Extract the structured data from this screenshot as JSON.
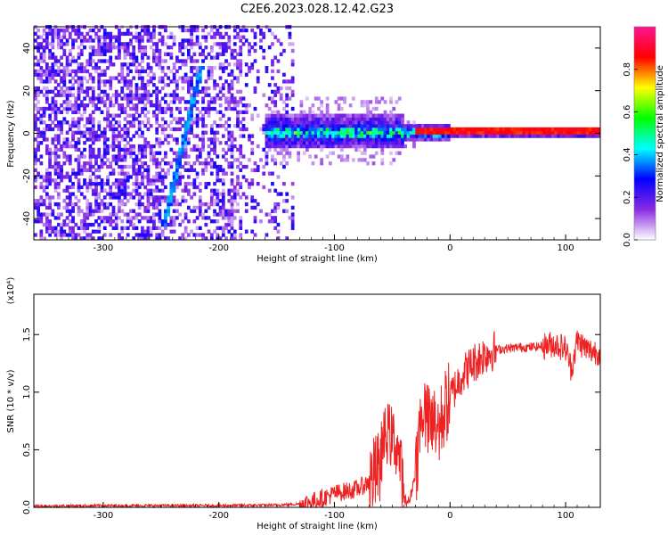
{
  "title": "C2E6.2023.028.12.42.G23",
  "chart_data": [
    {
      "type": "heatmap",
      "xlabel": "Height of straight line (km)",
      "ylabel": "Frequency (Hz)",
      "xlim": [
        -360,
        130
      ],
      "ylim": [
        -50,
        50
      ],
      "x_ticks": [
        -300,
        -200,
        -100,
        0,
        100
      ],
      "y_ticks": [
        -40,
        -20,
        0,
        20,
        40
      ],
      "colorbar": {
        "label": "Normalized spectral amplitude",
        "range": [
          0,
          1
        ],
        "ticks": [
          0.0,
          0.2,
          0.4,
          0.6,
          0.8
        ],
        "colors": [
          "#ffffff",
          "#8a2be2",
          "#0000ff",
          "#00ffff",
          "#00ff00",
          "#ffff00",
          "#ff0000",
          "#ff1493"
        ]
      },
      "features": {
        "diagonal_trace": {
          "x_start": -248,
          "y_start": -44,
          "x_end": -215,
          "y_end": 32
        },
        "center_band": {
          "x_start": -160,
          "x_end": 130,
          "y_center": 0.5,
          "width_hz": 3
        },
        "strong_band": {
          "x_start": -30,
          "x_end": 130,
          "y_center": 1,
          "amplitude": 0.9
        }
      },
      "grid": false
    },
    {
      "type": "line",
      "xlabel": "Height of straight line (km)",
      "ylabel": "SNR (10 * v/v)",
      "y_multiplier": "(x10⁴)",
      "xlim": [
        -360,
        130
      ],
      "ylim": [
        0,
        1.85
      ],
      "x_ticks": [
        -300,
        -200,
        -100,
        0,
        100
      ],
      "y_ticks": [
        0.0,
        0.5,
        1.0,
        1.5
      ],
      "y_tick_labels": [
        "0.0",
        "0.5",
        "1.0",
        "1.5"
      ],
      "series_color": "#ee2222",
      "series": [
        {
          "x": [
            -360,
            -300,
            -250,
            -200,
            -150,
            -130,
            -120,
            -110,
            -100,
            -90,
            -80,
            -70,
            -60,
            -55,
            -50,
            -45,
            -40,
            -35,
            -30,
            -25,
            -20,
            -15,
            -10,
            -5,
            0,
            5,
            10,
            20,
            30,
            40,
            50,
            60,
            70,
            80,
            90,
            100,
            105,
            110,
            120,
            130
          ],
          "y": [
            0.01,
            0.015,
            0.015,
            0.015,
            0.02,
            0.03,
            0.05,
            0.08,
            0.12,
            0.14,
            0.16,
            0.22,
            0.35,
            0.55,
            0.5,
            0.4,
            0.06,
            0.05,
            0.3,
            0.8,
            0.6,
            0.55,
            0.65,
            0.85,
            0.95,
            1.05,
            1.15,
            1.25,
            1.33,
            1.37,
            1.38,
            1.39,
            1.39,
            1.4,
            1.42,
            1.38,
            1.2,
            1.45,
            1.36,
            1.35
          ]
        }
      ],
      "grid": false
    }
  ]
}
